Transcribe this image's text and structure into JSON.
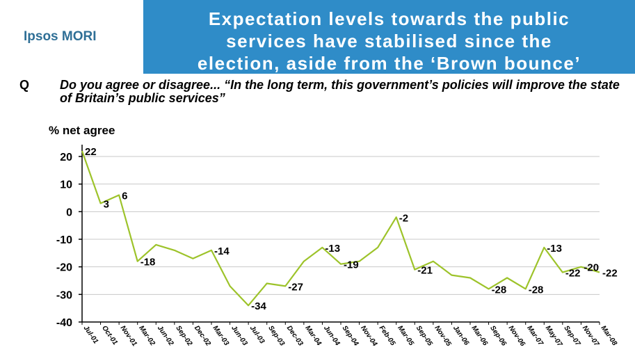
{
  "header": {
    "brand": "Ipsos MORI",
    "title_lines": [
      "Expectation levels towards the public",
      "services have stabilised since the",
      "election, aside from the ‘Brown bounce’"
    ]
  },
  "question": {
    "marker": "Q",
    "text": "Do you agree or disagree... “In the long term, this government’s policies will improve the state of Britain’s public services”"
  },
  "colors": {
    "title_band": "#2f8cc8",
    "brand": "#2f6f96",
    "line": "#9dc32a",
    "grid": "#c8c8c8"
  },
  "chart_data": {
    "type": "line",
    "ylabel": "% net agree",
    "ylim": [
      -40,
      20
    ],
    "yticks": [
      20,
      10,
      0,
      -10,
      -20,
      -30,
      -40
    ],
    "grid": true,
    "x_tick_labels": [
      "Jul-01",
      "Oct-01",
      "Nov-01",
      "Mar-02",
      "Jun-02",
      "Sep-02",
      "Dec-02",
      "Mar-03",
      "Jun-03",
      "Jul-03",
      "Sep-03",
      "Dec-03",
      "Mar-04",
      "Jun-04",
      "Sep-04",
      "Nov-04",
      "Feb-05",
      "Mar-05",
      "Sep-05",
      "Nov-05",
      "Jan-06",
      "Mar-06",
      "Sep-06",
      "Nov-06",
      "Mar-07",
      "May-07",
      "Sep-07",
      "Nov-07",
      "Mar-08"
    ],
    "series": [
      {
        "values": [
          22,
          3,
          6,
          -18,
          -12,
          -14,
          -17,
          -14,
          -27,
          -34,
          -26,
          -27,
          -18,
          -13,
          -19,
          -18,
          -13,
          -2,
          -21,
          -18,
          -23,
          -24,
          -28,
          -24,
          -28,
          -13,
          -22,
          -20,
          -22
        ],
        "data_labels": [
          {
            "index": 0,
            "text": "22"
          },
          {
            "index": 1,
            "text": "3"
          },
          {
            "index": 2,
            "text": "6"
          },
          {
            "index": 3,
            "text": "-18"
          },
          {
            "index": 7,
            "text": "-14"
          },
          {
            "index": 9,
            "text": "-34"
          },
          {
            "index": 11,
            "text": "-27"
          },
          {
            "index": 13,
            "text": "-13"
          },
          {
            "index": 14,
            "text": "-19"
          },
          {
            "index": 17,
            "text": "-2"
          },
          {
            "index": 18,
            "text": "-21"
          },
          {
            "index": 22,
            "text": "-28"
          },
          {
            "index": 24,
            "text": "-28"
          },
          {
            "index": 25,
            "text": "-13"
          },
          {
            "index": 26,
            "text": "-22"
          },
          {
            "index": 27,
            "text": "-20"
          },
          {
            "index": 28,
            "text": "-22"
          }
        ]
      }
    ]
  }
}
